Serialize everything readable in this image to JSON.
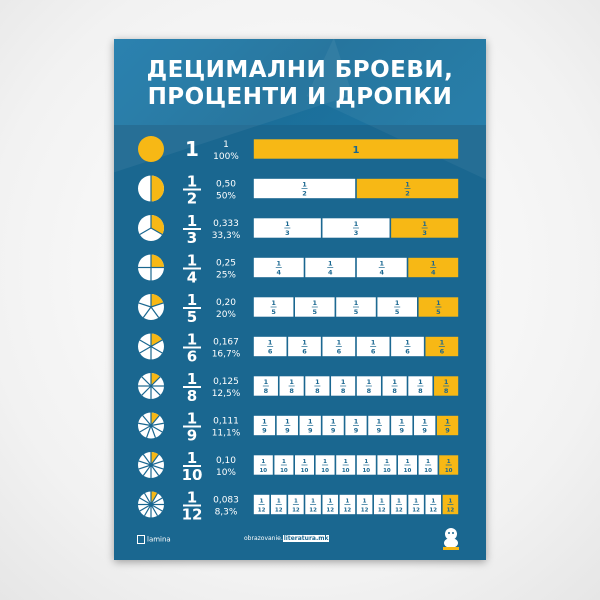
{
  "title": {
    "line1": "ДЕЦИМАЛНИ БРОЕВИ,",
    "line2": "ПРОЦЕНТИ И ДРОПКИ"
  },
  "colors": {
    "background": "#1a6790",
    "accent": "#f7b815",
    "cell": "#ffffff",
    "text": "#ffffff",
    "fraction_text": "#1a6790"
  },
  "rows": [
    {
      "numerator": "1",
      "denominator": "",
      "parts": 1,
      "decimal": "1",
      "percent": "100%",
      "whole_label": "1"
    },
    {
      "numerator": "1",
      "denominator": "2",
      "parts": 2,
      "decimal": "0,50",
      "percent": "50%"
    },
    {
      "numerator": "1",
      "denominator": "3",
      "parts": 3,
      "decimal": "0,333",
      "percent": "33,3%"
    },
    {
      "numerator": "1",
      "denominator": "4",
      "parts": 4,
      "decimal": "0,25",
      "percent": "25%"
    },
    {
      "numerator": "1",
      "denominator": "5",
      "parts": 5,
      "decimal": "0,20",
      "percent": "20%"
    },
    {
      "numerator": "1",
      "denominator": "6",
      "parts": 6,
      "decimal": "0,167",
      "percent": "16,7%"
    },
    {
      "numerator": "1",
      "denominator": "8",
      "parts": 8,
      "decimal": "0,125",
      "percent": "12,5%"
    },
    {
      "numerator": "1",
      "denominator": "9",
      "parts": 9,
      "decimal": "0,111",
      "percent": "11,1%"
    },
    {
      "numerator": "1",
      "denominator": "10",
      "parts": 10,
      "decimal": "0,10",
      "percent": "10%"
    },
    {
      "numerator": "1",
      "denominator": "12",
      "parts": 12,
      "decimal": "0,083",
      "percent": "8,3%"
    }
  ],
  "footer": {
    "publisher": "lamina",
    "website_prefix": "obrazovanie.",
    "website_highlight": "literatura.mk",
    "mascot_icon": "mascot-icon"
  }
}
